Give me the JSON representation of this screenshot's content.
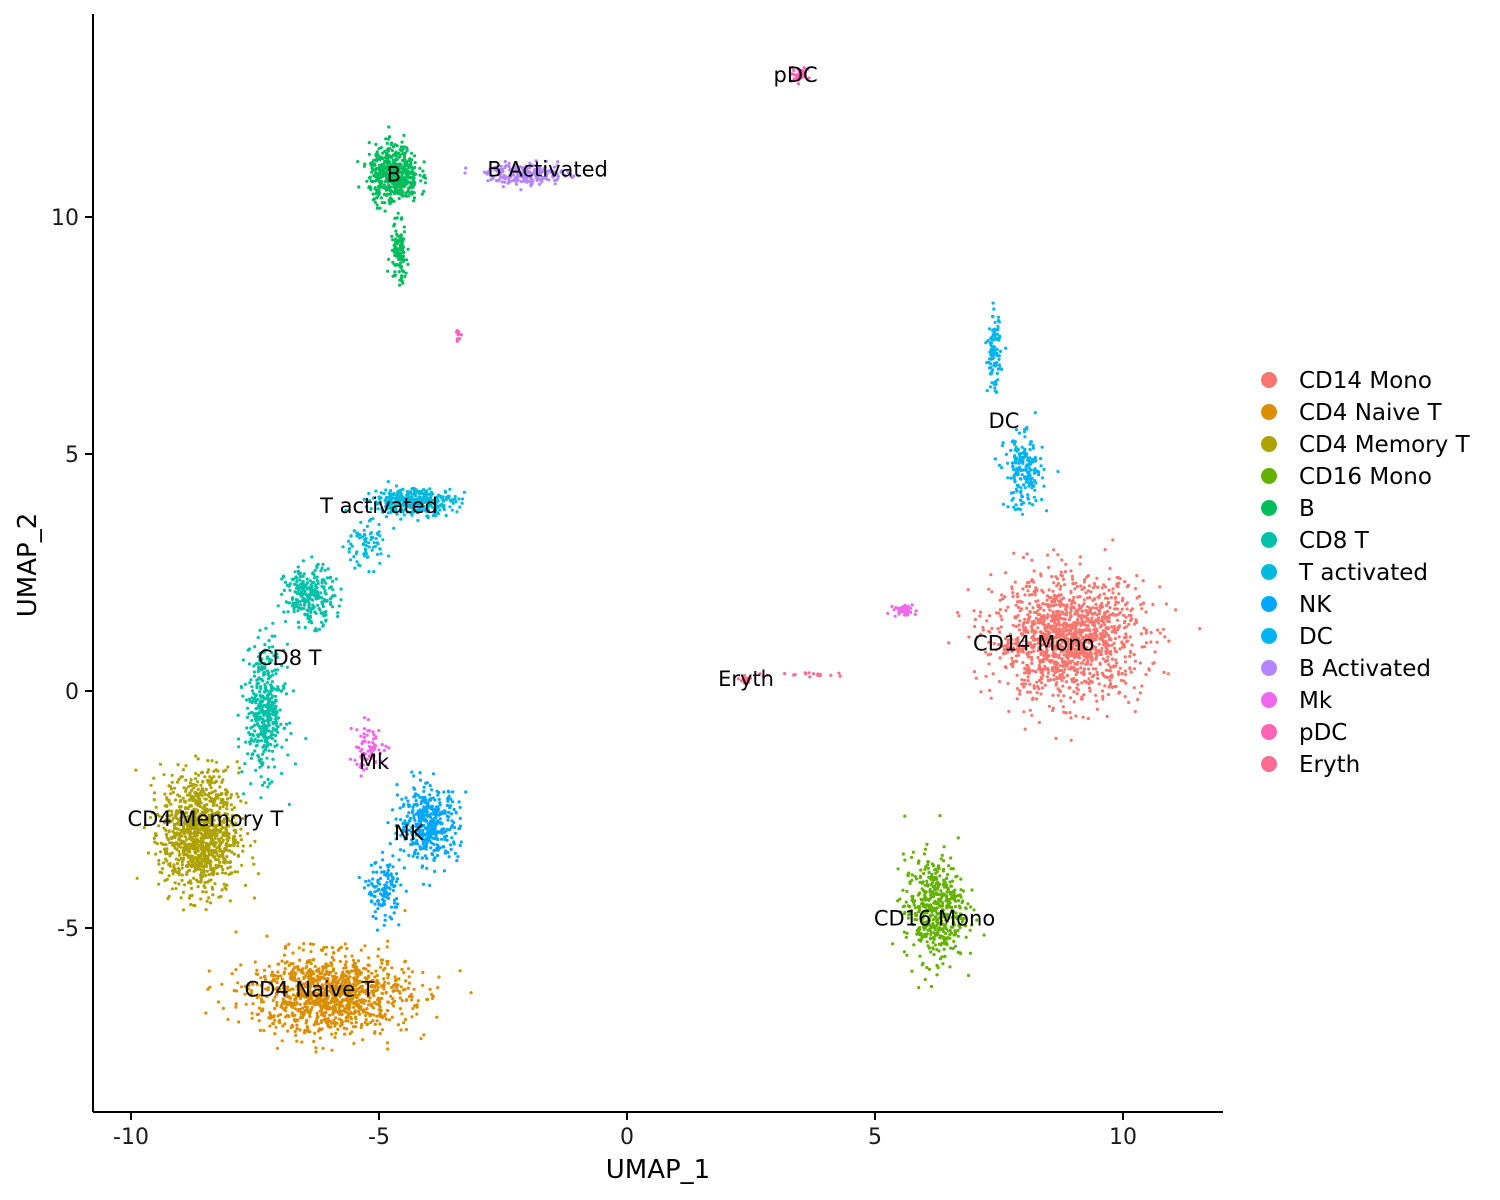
{
  "chart_data": {
    "type": "scatter",
    "title": "",
    "xlabel": "UMAP_1",
    "ylabel": "UMAP_2",
    "xlim": [
      -11.4,
      12
    ],
    "ylim": [
      -8.9,
      14.3
    ],
    "xticks": [
      -10,
      -5,
      0,
      5,
      10
    ],
    "xtick_labels": [
      "-10",
      "-5",
      "0",
      "5",
      "10"
    ],
    "yticks": [
      -5,
      0,
      5,
      10
    ],
    "ytick_labels": [
      "-5",
      "0",
      "5",
      "10"
    ],
    "grid": false,
    "legend_position": "right",
    "point_size": "small",
    "series": [
      {
        "name": "CD14 Mono",
        "color": "#F8766D",
        "label_at": [
          8.2,
          1.0
        ],
        "clusters": [
          {
            "center": [
              8.9,
              1.1
            ],
            "spread": [
              1.35,
              1.15
            ],
            "n": 1400
          }
        ]
      },
      {
        "name": "CD4 Naive T",
        "color": "#DB8E00",
        "label_at": [
          -6.4,
          -6.3
        ],
        "clusters": [
          {
            "center": [
              -6.0,
              -6.4
            ],
            "spread": [
              1.45,
              0.75
            ],
            "n": 1150
          }
        ]
      },
      {
        "name": "CD4 Memory T",
        "color": "#AEA200",
        "label_at": [
          -8.5,
          -2.7
        ],
        "clusters": [
          {
            "center": [
              -8.6,
              -3.0
            ],
            "spread": [
              0.7,
              1.15
            ],
            "n": 1050
          }
        ]
      },
      {
        "name": "CD16 Mono",
        "color": "#64B200",
        "label_at": [
          6.2,
          -4.8
        ],
        "clusters": [
          {
            "center": [
              6.2,
              -4.6
            ],
            "spread": [
              0.55,
              1.0
            ],
            "n": 500
          }
        ]
      },
      {
        "name": "B",
        "color": "#00BD5C",
        "label_at": [
          -4.7,
          10.9
        ],
        "clusters": [
          {
            "center": [
              -4.7,
              10.9
            ],
            "spread": [
              0.45,
              0.55
            ],
            "n": 520
          },
          {
            "center": [
              -4.6,
              9.2
            ],
            "spread": [
              0.15,
              0.55
            ],
            "n": 110
          }
        ]
      },
      {
        "name": "CD8 T",
        "color": "#00C1A7",
        "label_at": [
          -6.8,
          0.7
        ],
        "clusters": [
          {
            "center": [
              -7.3,
              -0.4
            ],
            "spread": [
              0.35,
              1.2
            ],
            "n": 420
          },
          {
            "center": [
              -6.4,
              2.0
            ],
            "spread": [
              0.45,
              0.55
            ],
            "n": 260
          }
        ]
      },
      {
        "name": "T activated",
        "color": "#00BADE",
        "label_at": [
          -5.0,
          3.9
        ],
        "clusters": [
          {
            "center": [
              -4.3,
              4.0
            ],
            "spread": [
              0.75,
              0.25
            ],
            "n": 380
          },
          {
            "center": [
              -5.3,
              3.1
            ],
            "spread": [
              0.45,
              0.45
            ],
            "n": 80
          }
        ]
      },
      {
        "name": "NK",
        "color": "#00A6FF",
        "label_at": [
          -4.4,
          -3.0
        ],
        "clusters": [
          {
            "center": [
              -4.0,
              -2.8
            ],
            "spread": [
              0.55,
              0.7
            ],
            "n": 420
          },
          {
            "center": [
              -4.9,
              -4.2
            ],
            "spread": [
              0.3,
              0.55
            ],
            "n": 130
          }
        ]
      },
      {
        "name": "DC",
        "color": "#00B4F0",
        "label_at": [
          7.6,
          5.7
        ],
        "clusters": [
          {
            "center": [
              7.4,
              7.1
            ],
            "spread": [
              0.12,
              0.7
            ],
            "n": 110
          },
          {
            "center": [
              8.0,
              4.6
            ],
            "spread": [
              0.35,
              0.7
            ],
            "n": 200
          }
        ]
      },
      {
        "name": "B Activated",
        "color": "#B385FF",
        "label_at": [
          -1.6,
          11.0
        ],
        "clusters": [
          {
            "center": [
              -2.0,
              10.9
            ],
            "spread": [
              0.75,
              0.2
            ],
            "n": 220
          }
        ]
      },
      {
        "name": "Mk",
        "color": "#EF67EB",
        "label_at": [
          -5.1,
          -1.5
        ],
        "clusters": [
          {
            "center": [
              -5.2,
              -1.2
            ],
            "spread": [
              0.35,
              0.45
            ],
            "n": 70
          },
          {
            "center": [
              5.6,
              1.7
            ],
            "spread": [
              0.2,
              0.12
            ],
            "n": 40
          }
        ]
      },
      {
        "name": "pDC",
        "color": "#FF63B6",
        "label_at": [
          3.4,
          13.0
        ],
        "clusters": [
          {
            "center": [
              3.45,
              13.0
            ],
            "spread": [
              0.18,
              0.12
            ],
            "n": 40
          },
          {
            "center": [
              -3.4,
              7.5
            ],
            "spread": [
              0.06,
              0.12
            ],
            "n": 12
          }
        ]
      },
      {
        "name": "Eryth",
        "color": "#FF6C91",
        "label_at": [
          2.4,
          0.25
        ],
        "clusters": [
          {
            "center": [
              2.4,
              0.25
            ],
            "spread": [
              0.12,
              0.08
            ],
            "n": 18
          },
          {
            "center": [
              3.8,
              0.35
            ],
            "spread": [
              0.75,
              0.05
            ],
            "n": 18
          }
        ]
      }
    ]
  },
  "legend": {
    "items": [
      {
        "label": "CD14 Mono",
        "color": "#F8766D"
      },
      {
        "label": "CD4 Naive T",
        "color": "#DB8E00"
      },
      {
        "label": "CD4 Memory T",
        "color": "#AEA200"
      },
      {
        "label": "CD16 Mono",
        "color": "#64B200"
      },
      {
        "label": "B",
        "color": "#00BD5C"
      },
      {
        "label": "CD8 T",
        "color": "#00C1A7"
      },
      {
        "label": "T activated",
        "color": "#00BADE"
      },
      {
        "label": "NK",
        "color": "#00A6FF"
      },
      {
        "label": "DC",
        "color": "#00B4F0"
      },
      {
        "label": "B Activated",
        "color": "#B385FF"
      },
      {
        "label": "Mk",
        "color": "#EF67EB"
      },
      {
        "label": "pDC",
        "color": "#FF63B6"
      },
      {
        "label": "Eryth",
        "color": "#FF6C91"
      }
    ]
  }
}
